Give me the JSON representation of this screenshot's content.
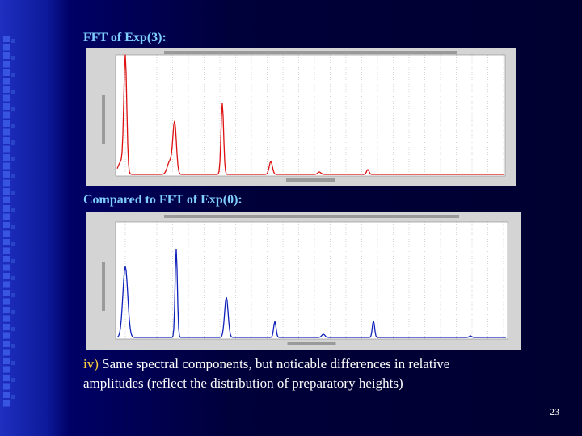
{
  "slide": {
    "heading_1": "FFT of Exp(3):",
    "heading_2": "Compared to FFT of Exp(0):",
    "body": {
      "label": "iv)",
      "lines": [
        " Same spectral components, but noticable differences in relative",
        "amplitudes (reflect the distribution of preparatory heights)"
      ]
    },
    "page_number": "23"
  }
}
